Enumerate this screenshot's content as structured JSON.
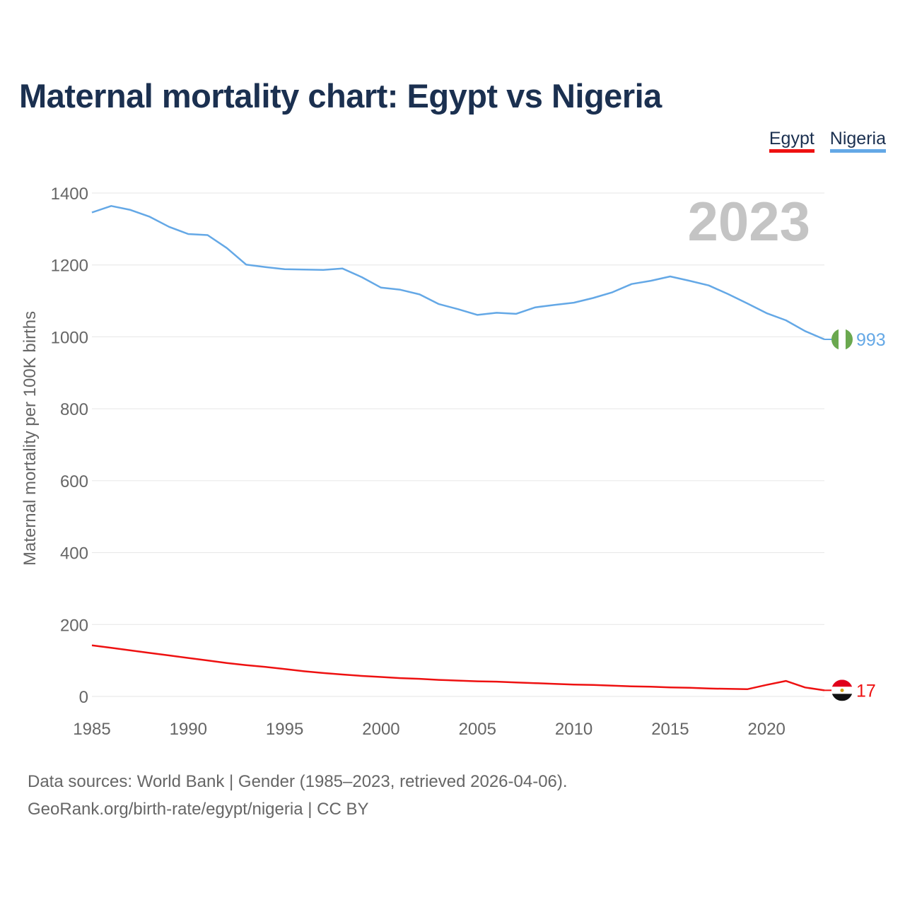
{
  "title": "Maternal mortality chart: Egypt vs Nigeria",
  "footer": {
    "line1": "Data sources: World Bank | Gender (1985–2023, retrieved 2026-04-06).",
    "line2": "GeoRank.org/birth-rate/egypt/nigeria | CC BY"
  },
  "chart_data": {
    "type": "line",
    "title": "Maternal mortality chart: Egypt vs Nigeria",
    "xlabel": "",
    "ylabel": "Maternal mortality per 100K births",
    "year_label": "2023",
    "xlim": [
      1985,
      2023
    ],
    "ylim": [
      0,
      1400
    ],
    "xticks": [
      1985,
      1990,
      1995,
      2000,
      2005,
      2010,
      2015,
      2020
    ],
    "yticks": [
      0,
      200,
      400,
      600,
      800,
      1000,
      1200,
      1400
    ],
    "grid": true,
    "legend_position": "top-right",
    "x": [
      1985,
      1986,
      1987,
      1988,
      1989,
      1990,
      1991,
      1992,
      1993,
      1994,
      1995,
      1996,
      1997,
      1998,
      1999,
      2000,
      2001,
      2002,
      2003,
      2004,
      2005,
      2006,
      2007,
      2008,
      2009,
      2010,
      2011,
      2012,
      2013,
      2014,
      2015,
      2016,
      2017,
      2018,
      2019,
      2020,
      2021,
      2022,
      2023
    ],
    "series": [
      {
        "name": "Egypt",
        "color": "#ee1111",
        "end_label": "17",
        "flag": "egypt",
        "values": [
          142,
          135,
          128,
          121,
          114,
          107,
          100,
          93,
          87,
          82,
          76,
          70,
          65,
          61,
          57,
          54,
          51,
          49,
          46,
          44,
          42,
          41,
          39,
          37,
          35,
          33,
          32,
          30,
          28,
          27,
          25,
          24,
          22,
          21,
          20,
          32,
          43,
          25,
          17
        ]
      },
      {
        "name": "Nigeria",
        "color": "#64a8e6",
        "end_label": "993",
        "flag": "nigeria",
        "values": [
          1346,
          1364,
          1353,
          1334,
          1306,
          1286,
          1283,
          1247,
          1201,
          1194,
          1188,
          1187,
          1186,
          1190,
          1166,
          1137,
          1131,
          1118,
          1091,
          1077,
          1061,
          1067,
          1064,
          1082,
          1089,
          1095,
          1108,
          1124,
          1147,
          1156,
          1168,
          1156,
          1143,
          1119,
          1093,
          1066,
          1046,
          1016,
          993
        ]
      }
    ]
  }
}
